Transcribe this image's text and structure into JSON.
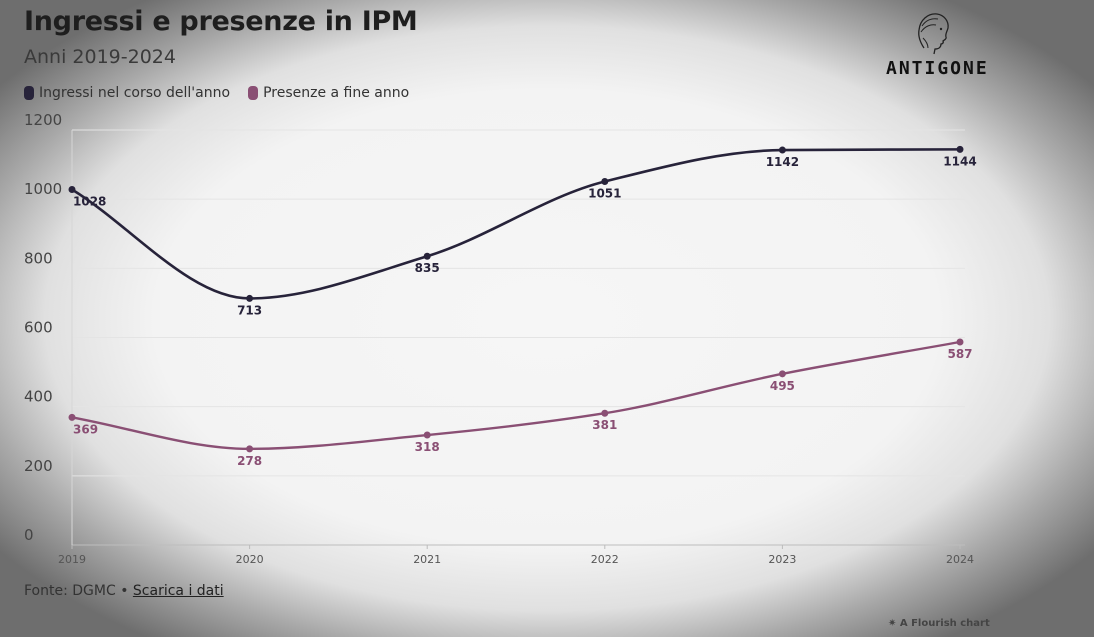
{
  "header": {
    "title": "Ingressi e presenze in IPM",
    "subtitle": "Anni 2019-2024"
  },
  "logo": {
    "text": "ANTIGONE",
    "icon": "head-profile-icon"
  },
  "legend": [
    {
      "label": "Ingressi nel corso dell'anno",
      "color": "#27233a"
    },
    {
      "label": "Presenze a fine anno",
      "color": "#8a4f74"
    }
  ],
  "footer": {
    "source": "Fonte: DGMC •",
    "link": "Scarica i dati",
    "credit": "A Flourish chart"
  },
  "chart_data": {
    "type": "line",
    "x": [
      2019,
      2020,
      2021,
      2022,
      2023,
      2024
    ],
    "xticks": [
      "2019",
      "2020",
      "2021",
      "2022",
      "2023",
      "2024"
    ],
    "yticks": [
      "0",
      "200",
      "400",
      "600",
      "800",
      "1000",
      "1200"
    ],
    "ylim": [
      0,
      1200
    ],
    "grid": true,
    "legend_position": "top-left",
    "series": [
      {
        "name": "Ingressi nel corso dell'anno",
        "color": "#27233a",
        "values": [
          1028,
          713,
          835,
          1051,
          1142,
          1144
        ],
        "labels": [
          "1028",
          "713",
          "835",
          "1051",
          "1142",
          "1144"
        ]
      },
      {
        "name": "Presenze a fine anno",
        "color": "#8a4f74",
        "values": [
          369,
          278,
          318,
          381,
          495,
          587
        ],
        "labels": [
          "369",
          "278",
          "318",
          "381",
          "495",
          "587"
        ]
      }
    ]
  }
}
